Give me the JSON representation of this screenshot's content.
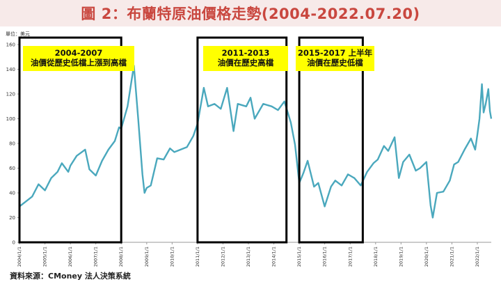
{
  "title": "圖 2：布蘭特原油價格走勢(2004-2022.07.20)",
  "unit": "單位：美元",
  "source": "資料來源：CMoney 法人決策系統",
  "colors": {
    "line": "#4aa8bd",
    "title": "#c9473f",
    "highlight": "#ffff00",
    "frame": "#000000"
  },
  "annotations": [
    {
      "line1": "2004-2007",
      "line2": "油價從歷史低檔上漲到高檔"
    },
    {
      "line1": "2011-2013",
      "line2": "油價在歷史高檔"
    },
    {
      "line1": "2015-2017 上半年",
      "line2": "油價在歷史低檔"
    }
  ],
  "chart_data": {
    "type": "line",
    "ylim": [
      0,
      160
    ],
    "y_ticks": [
      0,
      20,
      40,
      60,
      80,
      100,
      120,
      140,
      160
    ],
    "grid": false,
    "x_tick_labels": [
      "2004/1/1",
      "2005/1/1",
      "2006/1/1",
      "2007/1/1",
      "2008/1/1",
      "2009/1/1",
      "2010/1/1",
      "2011/1/1",
      "2012/1/1",
      "2013/1/1",
      "2014/1/1",
      "2015/1/1",
      "2016/1/1",
      "2017/1/1",
      "2018/1/1",
      "2019/1/1",
      "2020/1/1",
      "2021/1/1",
      "2022/1/1"
    ],
    "highlight_ranges": [
      [
        "2004-01-01",
        "2008-01-01"
      ],
      [
        "2011-01-01",
        "2014-07-01"
      ],
      [
        "2015-01-01",
        "2017-07-01"
      ]
    ],
    "series": [
      {
        "points": [
          [
            "2004-01-01",
            29
          ],
          [
            "2004-04-01",
            33
          ],
          [
            "2004-07-01",
            37
          ],
          [
            "2004-10-01",
            47
          ],
          [
            "2005-01-01",
            42
          ],
          [
            "2005-04-01",
            52
          ],
          [
            "2005-07-01",
            57
          ],
          [
            "2005-09-01",
            64
          ],
          [
            "2005-12-01",
            57
          ],
          [
            "2006-01-01",
            62
          ],
          [
            "2006-04-01",
            70
          ],
          [
            "2006-08-01",
            75
          ],
          [
            "2006-10-01",
            59
          ],
          [
            "2007-01-01",
            54
          ],
          [
            "2007-04-01",
            66
          ],
          [
            "2007-07-01",
            75
          ],
          [
            "2007-10-01",
            82
          ],
          [
            "2007-12-01",
            93
          ],
          [
            "2008-01-01",
            92
          ],
          [
            "2008-04-01",
            110
          ],
          [
            "2008-07-01",
            143
          ],
          [
            "2008-09-01",
            100
          ],
          [
            "2008-11-01",
            55
          ],
          [
            "2008-12-01",
            40
          ],
          [
            "2009-01-01",
            44
          ],
          [
            "2009-03-01",
            46
          ],
          [
            "2009-06-01",
            68
          ],
          [
            "2009-09-01",
            67
          ],
          [
            "2009-12-01",
            76
          ],
          [
            "2010-02-01",
            73
          ],
          [
            "2010-05-01",
            75
          ],
          [
            "2010-08-01",
            77
          ],
          [
            "2010-11-01",
            86
          ],
          [
            "2011-01-01",
            96
          ],
          [
            "2011-03-01",
            115
          ],
          [
            "2011-04-01",
            125
          ],
          [
            "2011-06-01",
            110
          ],
          [
            "2011-09-01",
            112
          ],
          [
            "2011-12-01",
            108
          ],
          [
            "2012-03-01",
            125
          ],
          [
            "2012-06-01",
            90
          ],
          [
            "2012-08-01",
            112
          ],
          [
            "2012-12-01",
            110
          ],
          [
            "2013-02-01",
            117
          ],
          [
            "2013-04-01",
            100
          ],
          [
            "2013-08-01",
            112
          ],
          [
            "2013-12-01",
            110
          ],
          [
            "2014-03-01",
            107
          ],
          [
            "2014-06-01",
            114
          ],
          [
            "2014-09-01",
            97
          ],
          [
            "2014-11-01",
            79
          ],
          [
            "2015-01-01",
            48
          ],
          [
            "2015-03-01",
            56
          ],
          [
            "2015-05-01",
            66
          ],
          [
            "2015-08-01",
            45
          ],
          [
            "2015-10-01",
            48
          ],
          [
            "2016-01-01",
            29
          ],
          [
            "2016-04-01",
            45
          ],
          [
            "2016-06-01",
            50
          ],
          [
            "2016-09-01",
            46
          ],
          [
            "2016-12-01",
            55
          ],
          [
            "2017-03-01",
            52
          ],
          [
            "2017-06-01",
            46
          ],
          [
            "2017-09-01",
            57
          ],
          [
            "2017-12-01",
            64
          ],
          [
            "2018-02-01",
            67
          ],
          [
            "2018-05-01",
            78
          ],
          [
            "2018-07-01",
            74
          ],
          [
            "2018-10-01",
            85
          ],
          [
            "2018-12-01",
            52
          ],
          [
            "2019-02-01",
            65
          ],
          [
            "2019-05-01",
            71
          ],
          [
            "2019-08-01",
            58
          ],
          [
            "2019-10-01",
            60
          ],
          [
            "2020-01-01",
            65
          ],
          [
            "2020-03-01",
            30
          ],
          [
            "2020-04-01",
            20
          ],
          [
            "2020-06-01",
            40
          ],
          [
            "2020-09-01",
            41
          ],
          [
            "2020-12-01",
            50
          ],
          [
            "2021-02-01",
            63
          ],
          [
            "2021-04-01",
            65
          ],
          [
            "2021-07-01",
            75
          ],
          [
            "2021-10-01",
            84
          ],
          [
            "2021-12-01",
            75
          ],
          [
            "2022-01-01",
            87
          ],
          [
            "2022-02-01",
            100
          ],
          [
            "2022-03-08",
            128
          ],
          [
            "2022-04-01",
            105
          ],
          [
            "2022-05-01",
            112
          ],
          [
            "2022-06-08",
            124
          ],
          [
            "2022-07-01",
            106
          ],
          [
            "2022-07-20",
            100
          ]
        ]
      }
    ]
  }
}
